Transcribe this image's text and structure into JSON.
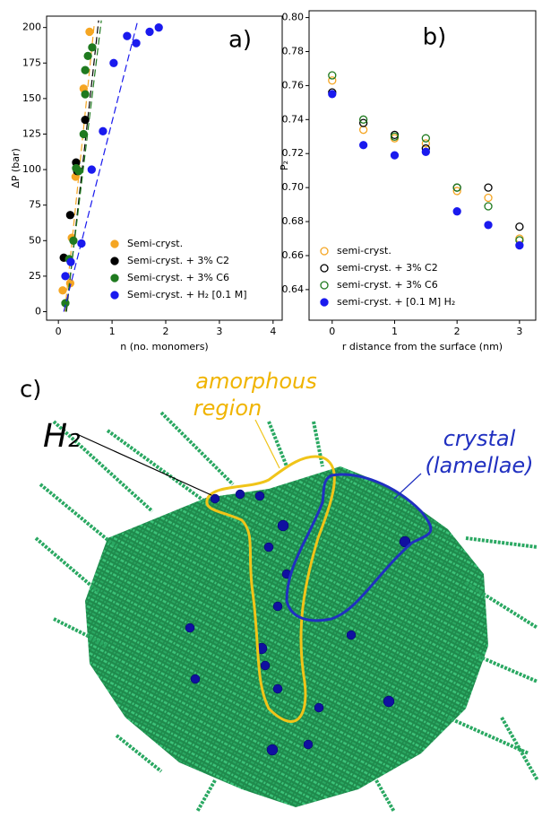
{
  "chart_data": [
    {
      "type": "scatter",
      "panel_label": "a)",
      "x_label": "n (no. monomers)",
      "y_label": "ΔP (bar)",
      "xlim": [
        -0.22,
        4.17
      ],
      "xticks": [
        0,
        1,
        2,
        3,
        4
      ],
      "ylim": [
        -6,
        208
      ],
      "yticks": [
        0,
        25,
        50,
        75,
        100,
        125,
        150,
        175,
        200
      ],
      "legend": "lower right",
      "series": [
        {
          "name": "Semi-cryst.",
          "color": "#f5a623",
          "marker": "filled",
          "x": [
            0.58,
            0.47,
            0.32,
            0.25,
            0.22,
            0.08
          ],
          "values": [
            197,
            157,
            95,
            52,
            20,
            15
          ],
          "fit_x": [
            0.12,
            0.67
          ],
          "fit_values": [
            0,
            203
          ]
        },
        {
          "name": "Semi-cryst. + 3% C2",
          "color": "#000000",
          "marker": "filled",
          "x": [
            0.5,
            0.33,
            0.22,
            0.1,
            0.35
          ],
          "values": [
            135,
            105,
            68,
            38,
            99
          ],
          "fit_x": [
            0.15,
            0.75
          ],
          "fit_values": [
            0,
            205
          ]
        },
        {
          "name": "Semi-cryst. + 3% C6",
          "color": "#1f7a1f",
          "marker": "filled",
          "x": [
            0.63,
            0.55,
            0.5,
            0.5,
            0.47,
            0.38,
            0.33,
            0.28,
            0.2,
            0.13
          ],
          "values": [
            186,
            180,
            170,
            153,
            125,
            99,
            101,
            50,
            37,
            6
          ],
          "fit_x": [
            0.14,
            0.8
          ],
          "fit_values": [
            0,
            205
          ]
        },
        {
          "name": "Semi-cryst. + H₂ [0.1 M]",
          "color": "#1a1aee",
          "marker": "filled",
          "x": [
            1.87,
            1.7,
            1.45,
            1.28,
            1.03,
            0.83,
            0.62,
            0.43,
            0.23,
            0.13
          ],
          "values": [
            200,
            197,
            189,
            194,
            175,
            127,
            100,
            48,
            35,
            25
          ],
          "fit_x": [
            0.1,
            1.48
          ],
          "fit_values": [
            0,
            205
          ]
        }
      ]
    },
    {
      "type": "scatter",
      "panel_label": "b)",
      "x_label": "r distance from the surface (nm)",
      "y_label": "P₂",
      "xlim": [
        -0.37,
        3.26
      ],
      "xticks": [
        0,
        1,
        2,
        3
      ],
      "ylim": [
        0.622,
        0.804
      ],
      "yticks": [
        0.64,
        0.66,
        0.68,
        {
          "value": 0.7,
          "label": "0.70"
        },
        0.72,
        0.74,
        0.76,
        0.78,
        {
          "value": 0.8,
          "label": "0.80"
        }
      ],
      "legend": "lower left",
      "x": [
        0,
        0.5,
        1,
        1.5,
        2,
        2.5,
        3
      ],
      "series": [
        {
          "name": "semi-cryst.",
          "color": "#f5a623",
          "marker": "open",
          "values": [
            0.763,
            0.734,
            0.729,
            0.726,
            0.698,
            0.694,
            0.67
          ]
        },
        {
          "name": "semi-cryst. + 3% C2",
          "color": "#000000",
          "marker": "open",
          "values": [
            0.756,
            0.738,
            0.731,
            0.723,
            0.7,
            0.7,
            0.677
          ]
        },
        {
          "name": "semi-cryst. + 3% C6",
          "color": "#1f7a1f",
          "marker": "open",
          "values": [
            0.766,
            0.74,
            0.73,
            0.729,
            0.7,
            0.689,
            0.669
          ]
        },
        {
          "name": "semi-cryst. + [0.1 M] H₂",
          "color": "#1a1aee",
          "marker": "filled",
          "values": [
            0.755,
            0.725,
            0.719,
            0.721,
            0.686,
            0.678,
            0.666
          ]
        }
      ]
    }
  ],
  "panel_c": {
    "label": "c)",
    "amorphous": [
      "amorphous",
      "region"
    ],
    "h2": "H₂",
    "crystal": [
      "crystal",
      "(lamellae)"
    ]
  }
}
